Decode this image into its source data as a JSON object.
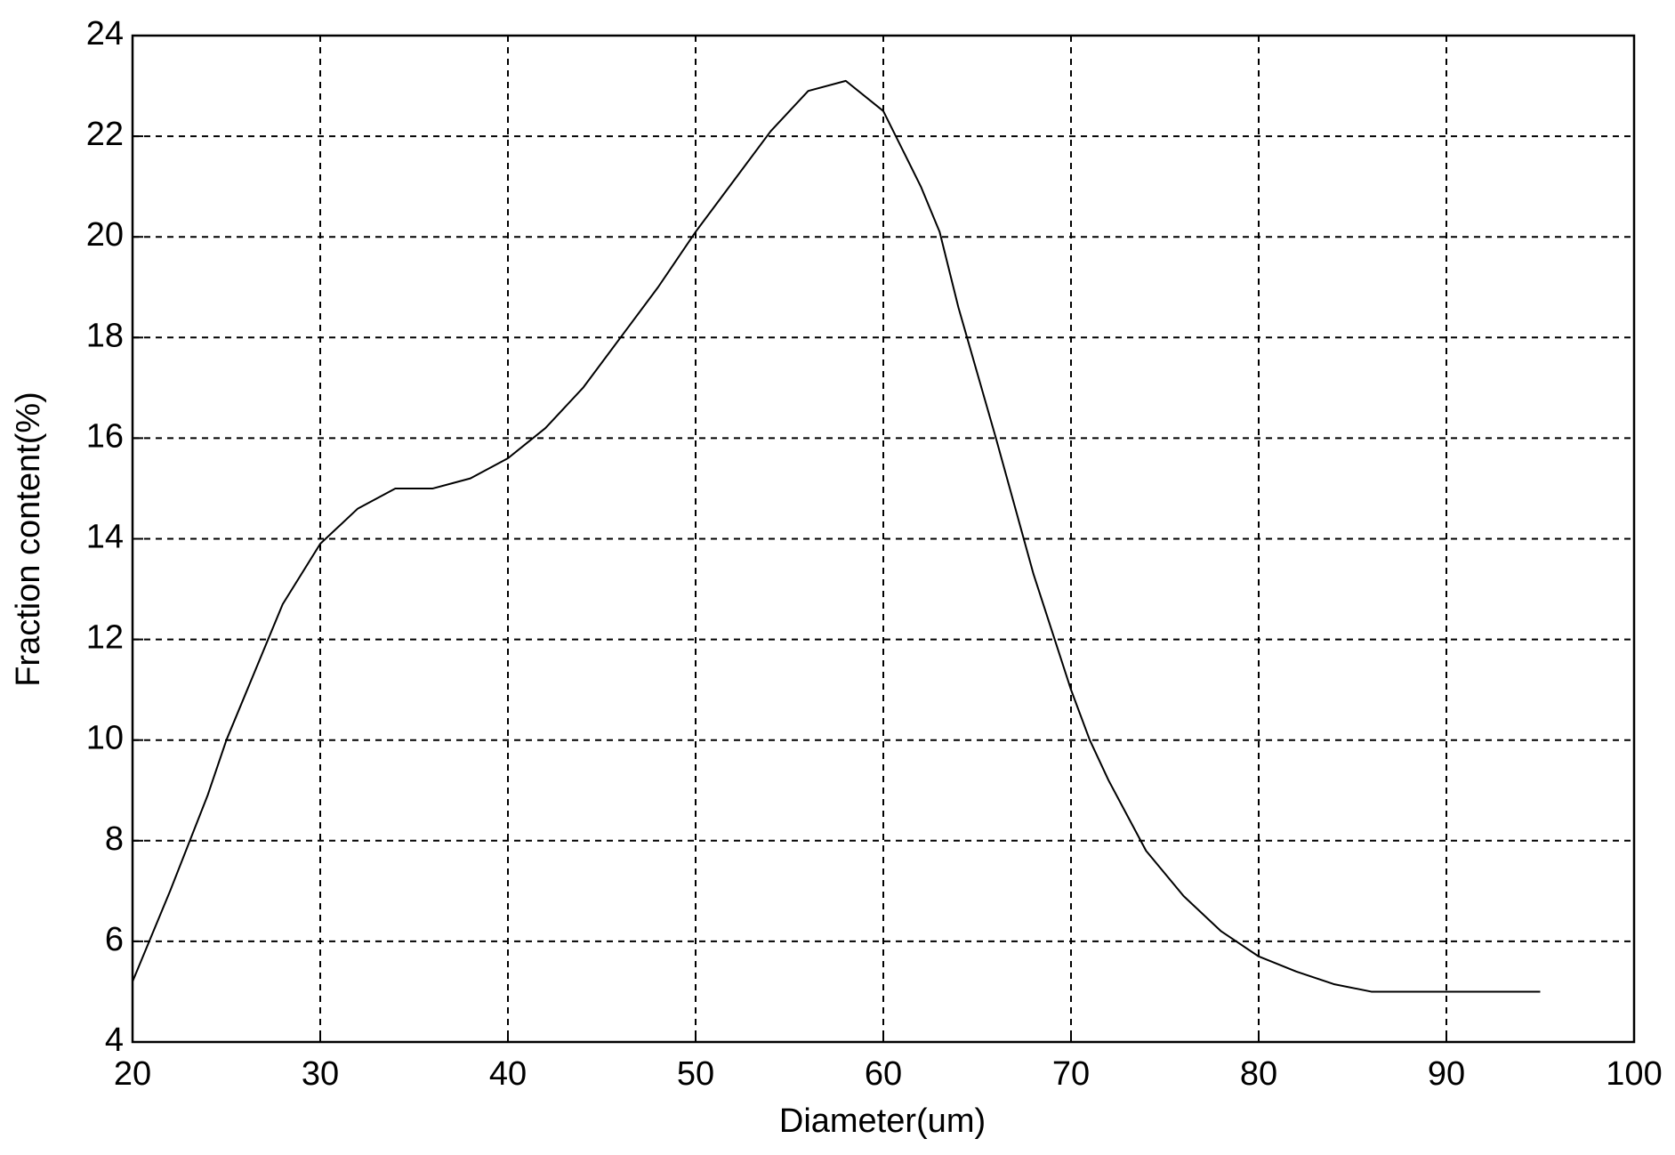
{
  "chart_data": {
    "type": "line",
    "x_label": "Diameter(um)",
    "y_label": "Fraction content(%)",
    "x": [
      20,
      22,
      24,
      25,
      26,
      28,
      30,
      32,
      34,
      36,
      38,
      40,
      42,
      44,
      46,
      48,
      50,
      52,
      54,
      56,
      58,
      60,
      62,
      63,
      64,
      66,
      68,
      70,
      71,
      72,
      74,
      76,
      78,
      80,
      82,
      84,
      86,
      90,
      95
    ],
    "series": [
      {
        "color": "#000000",
        "values": [
          5.2,
          7.0,
          8.9,
          10,
          10.9,
          12.7,
          13.9,
          14.6,
          15.0,
          15.0,
          15.2,
          15.6,
          16.2,
          17.0,
          18.0,
          19.0,
          20.1,
          21.1,
          22.1,
          22.9,
          23.1,
          22.5,
          21.0,
          20.1,
          18.6,
          16.0,
          13.3,
          11.0,
          10.0,
          9.2,
          7.8,
          6.9,
          6.2,
          5.7,
          5.4,
          5.15,
          5.0,
          5.0,
          5.0
        ]
      }
    ],
    "xlim": [
      20,
      100
    ],
    "xticks": [
      20,
      30,
      40,
      50,
      60,
      70,
      80,
      90,
      100
    ],
    "ylim": [
      4,
      24
    ],
    "yticks": [
      4,
      6,
      8,
      10,
      12,
      14,
      16,
      18,
      20,
      22,
      24
    ],
    "grid": true
  }
}
